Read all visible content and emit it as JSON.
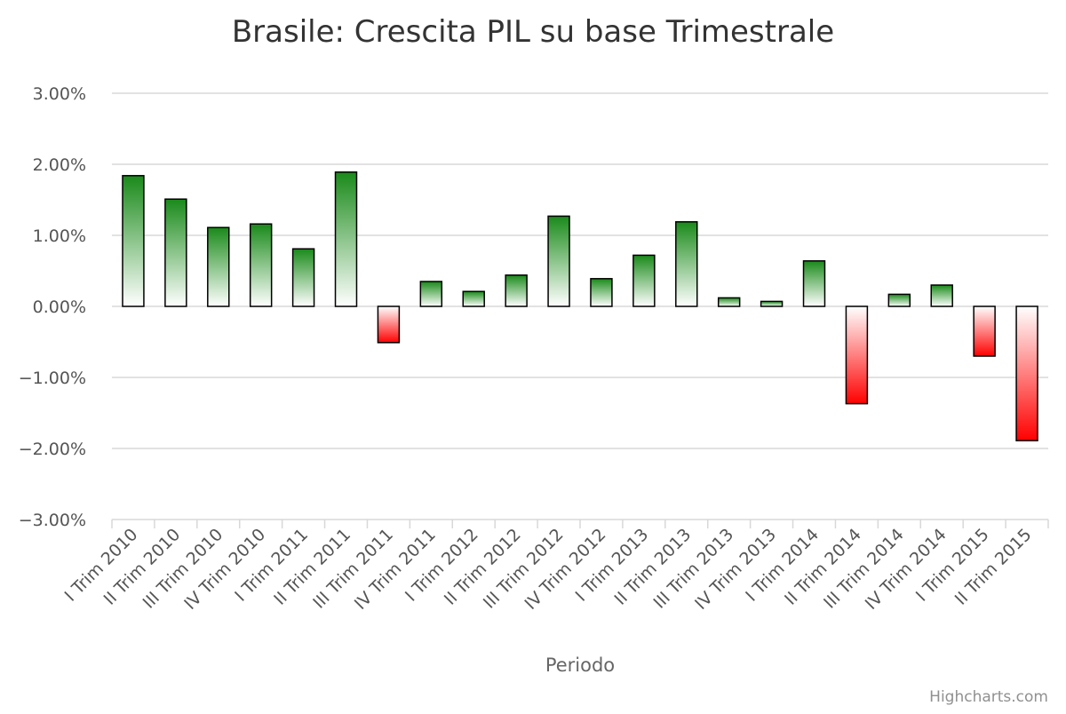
{
  "chart_data": {
    "type": "bar",
    "title": "Brasile: Crescita PIL su base Trimestrale",
    "xlabel": "Periodo",
    "ylabel": "",
    "ylim": [
      -3,
      3
    ],
    "y_ticks": [
      "3.00%",
      "2.00%",
      "1.00%",
      "0.00%",
      "−1.00%",
      "−2.00%",
      "−3.00%"
    ],
    "grid": true,
    "categories": [
      "I Trim 2010",
      "II Trim 2010",
      "III Trim 2010",
      "IV Trim 2010",
      "I Trim 2011",
      "II Trim 2011",
      "III Trim 2011",
      "IV Trim 2011",
      "I Trim 2012",
      "II Trim 2012",
      "III Trim 2012",
      "IV Trim 2012",
      "I Trim 2013",
      "II Trim 2013",
      "III Trim 2013",
      "IV Trim 2013",
      "I Trim 2014",
      "II Trim 2014",
      "III Trim 2014",
      "IV Trim 2014",
      "I Trim 2015",
      "II Trim 2015"
    ],
    "values": [
      1.84,
      1.51,
      1.11,
      1.16,
      0.81,
      1.89,
      -0.51,
      0.35,
      0.21,
      0.44,
      1.27,
      0.39,
      0.72,
      1.19,
      0.12,
      0.07,
      0.64,
      -1.37,
      0.17,
      0.3,
      -0.7,
      -1.89
    ],
    "colors": {
      "positive": "#1a8a1a",
      "negative": "#ff0000",
      "grid": "#d8d8d8",
      "border": "#000000"
    }
  },
  "credits": "Highcharts.com"
}
